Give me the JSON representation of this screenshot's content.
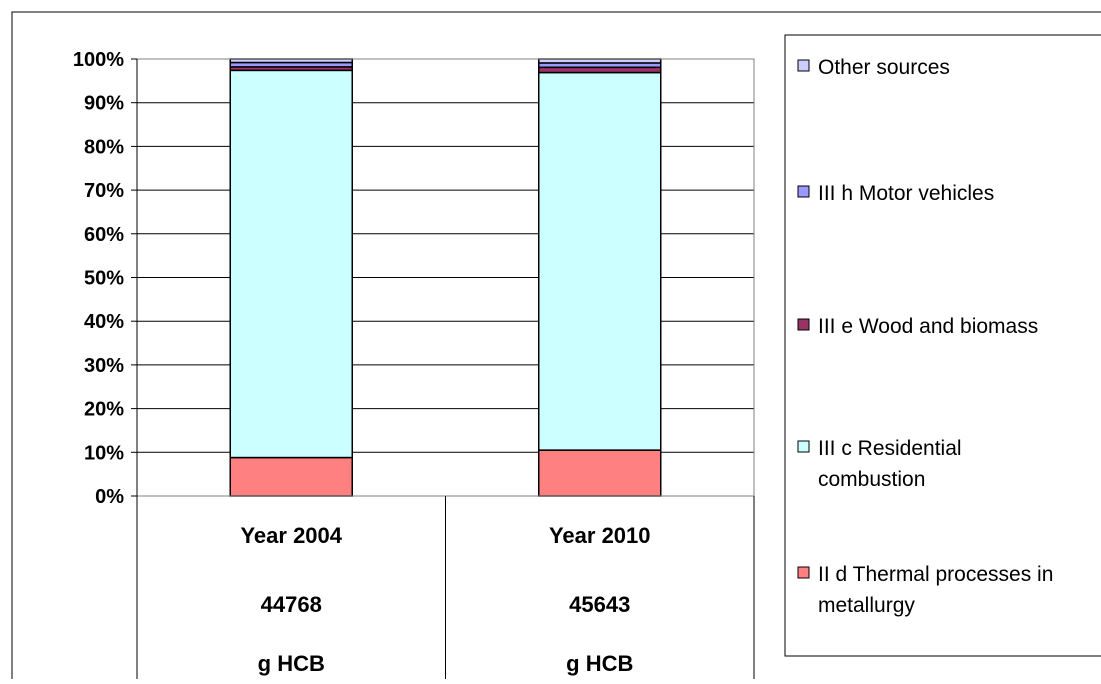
{
  "chart_data": {
    "type": "bar",
    "stacked": true,
    "normalized_percent": true,
    "categories": [
      "Year 2004",
      "Year 2010"
    ],
    "category_table": [
      [
        "Year 2004",
        "44768",
        "g HCB"
      ],
      [
        "Year 2010",
        "45643",
        "g HCB"
      ]
    ],
    "series": [
      {
        "name": "II d Thermal processes in metallurgy",
        "color": "#FF8080",
        "values": [
          8.8,
          10.5
        ]
      },
      {
        "name": "III c Residential combustion",
        "color": "#CCFFFF",
        "values": [
          88.6,
          86.4
        ]
      },
      {
        "name": "III e Wood and biomass",
        "color": "#993366",
        "values": [
          0.8,
          1.2
        ]
      },
      {
        "name": "III h Motor vehicles",
        "color": "#9999FF",
        "values": [
          1.0,
          1.0
        ]
      },
      {
        "name": "Other sources",
        "color": "#CCCCFF",
        "values": [
          0.8,
          0.9
        ]
      }
    ],
    "ylim": [
      0,
      100
    ],
    "ytick_labels": [
      "0%",
      "10%",
      "20%",
      "30%",
      "40%",
      "50%",
      "60%",
      "70%",
      "80%",
      "90%",
      "100%"
    ],
    "grid": true,
    "legend_position": "right",
    "legend_labels": [
      [
        "Other sources"
      ],
      [
        "III h Motor vehicles"
      ],
      [
        "III e Wood and biomass"
      ],
      [
        "III c Residential",
        "combustion"
      ],
      [
        "II d Thermal processes in",
        "metallurgy"
      ]
    ]
  }
}
